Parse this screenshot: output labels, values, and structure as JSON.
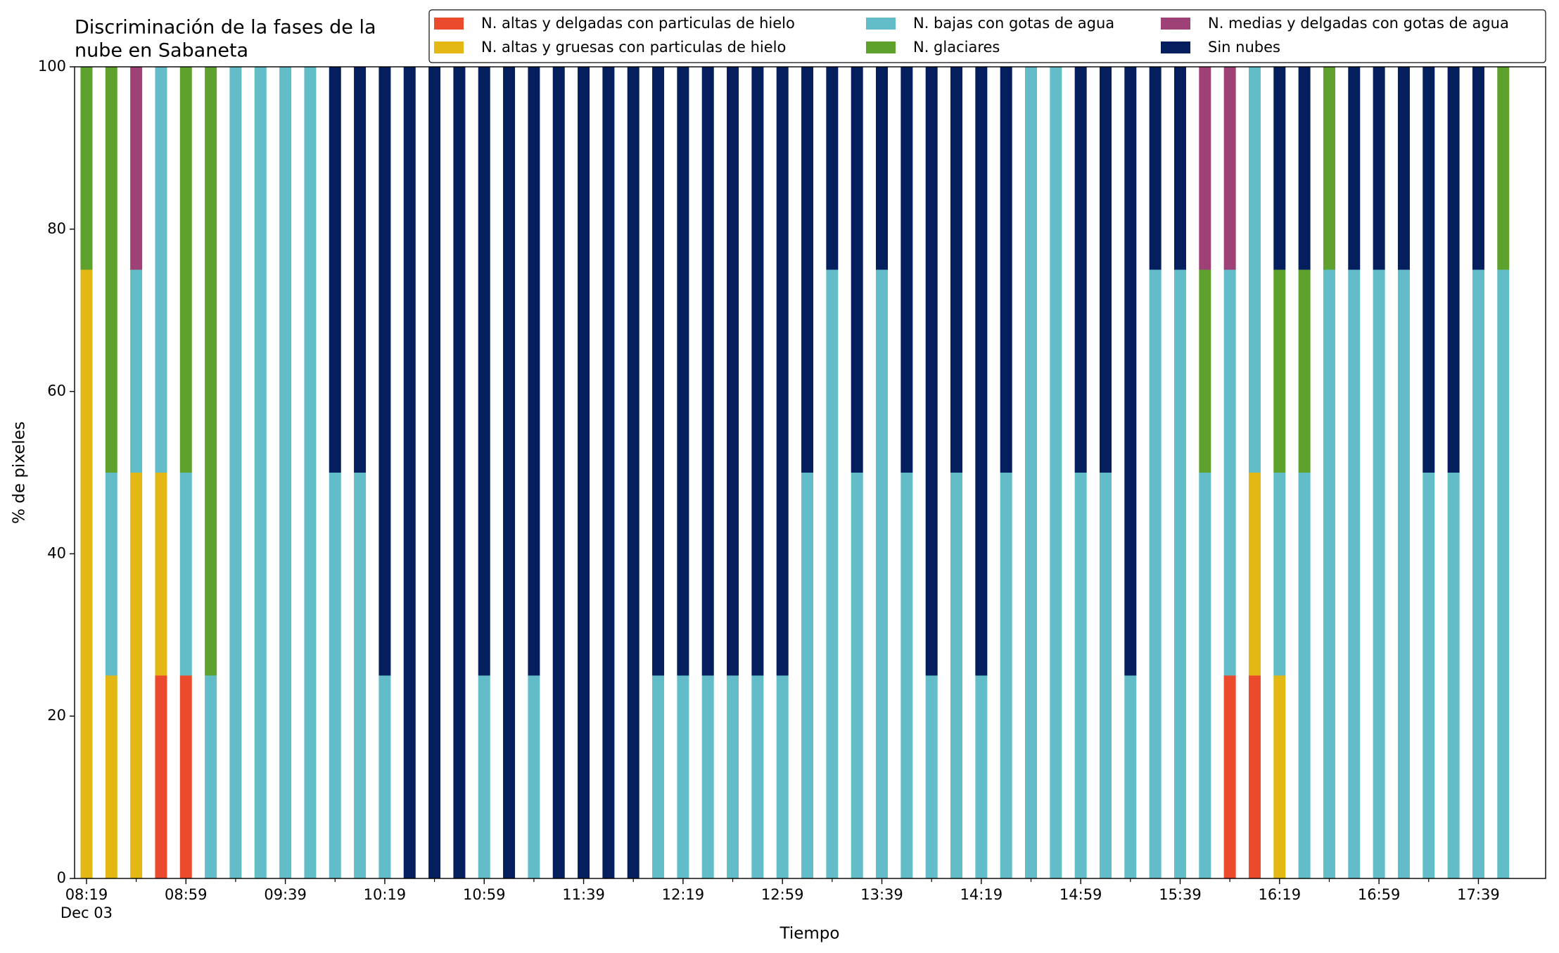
{
  "chart_data": {
    "type": "stacked_bar",
    "title": [
      "Discriminación de la fases de la",
      "nube en Sabaneta"
    ],
    "x_label": "Tiempo",
    "y_label": "% de pixeles",
    "x_sublabel": "Dec 03",
    "categories": [
      "08:19",
      null,
      null,
      null,
      "08:59",
      null,
      null,
      null,
      "09:39",
      null,
      null,
      null,
      "10:19",
      null,
      null,
      null,
      "10:59",
      null,
      null,
      null,
      "11:39",
      null,
      null,
      null,
      "12:19",
      null,
      null,
      null,
      "12:59",
      null,
      null,
      null,
      "13:39",
      null,
      null,
      null,
      "14:19",
      null,
      null,
      null,
      "14:59",
      null,
      null,
      null,
      "15:39",
      null,
      null,
      null,
      "16:19",
      null,
      null,
      null,
      "16:59",
      null,
      null,
      null,
      "17:39",
      null
    ],
    "series": [
      {
        "name": "N. altas y delgadas con particulas de hielo",
        "color": "#eb4a2c",
        "values": [
          0,
          0,
          0,
          25,
          25,
          0,
          0,
          0,
          0,
          0,
          0,
          0,
          0,
          0,
          0,
          0,
          0,
          0,
          0,
          0,
          0,
          0,
          0,
          0,
          0,
          0,
          0,
          0,
          0,
          0,
          0,
          0,
          0,
          0,
          0,
          0,
          0,
          0,
          0,
          0,
          0,
          0,
          0,
          0,
          0,
          0,
          25,
          25,
          0,
          0,
          0,
          0,
          0,
          0,
          0,
          0,
          0,
          0
        ]
      },
      {
        "name": "N. altas y gruesas con particulas de hielo",
        "color": "#e3b714",
        "values": [
          75,
          25,
          50,
          25,
          0,
          0,
          0,
          0,
          0,
          0,
          0,
          0,
          0,
          0,
          0,
          0,
          0,
          0,
          0,
          0,
          0,
          0,
          0,
          0,
          0,
          0,
          0,
          0,
          0,
          0,
          0,
          0,
          0,
          0,
          0,
          0,
          0,
          0,
          0,
          0,
          0,
          0,
          0,
          0,
          0,
          0,
          0,
          25,
          25,
          0,
          0,
          0,
          0,
          0,
          0,
          0,
          0,
          0
        ]
      },
      {
        "name": "N. bajas con gotas de agua",
        "color": "#63bdc8",
        "values": [
          0,
          25,
          25,
          50,
          25,
          25,
          100,
          100,
          100,
          100,
          50,
          50,
          25,
          0,
          0,
          0,
          25,
          0,
          25,
          0,
          0,
          0,
          0,
          25,
          25,
          25,
          25,
          25,
          25,
          50,
          75,
          50,
          75,
          50,
          25,
          50,
          25,
          50,
          100,
          100,
          50,
          50,
          25,
          75,
          75,
          50,
          50,
          50,
          25,
          50,
          75,
          75,
          75,
          75,
          50,
          50,
          75,
          75
        ]
      },
      {
        "name": "N. glaciares",
        "color": "#5ea22d",
        "values": [
          25,
          50,
          0,
          0,
          50,
          75,
          0,
          0,
          0,
          0,
          0,
          0,
          0,
          0,
          0,
          0,
          0,
          0,
          0,
          0,
          0,
          0,
          0,
          0,
          0,
          0,
          0,
          0,
          0,
          0,
          0,
          0,
          0,
          0,
          0,
          0,
          0,
          0,
          0,
          0,
          0,
          0,
          0,
          0,
          0,
          25,
          0,
          0,
          25,
          25,
          25,
          0,
          0,
          0,
          0,
          0,
          0,
          25
        ]
      },
      {
        "name": "N. medias y delgadas con gotas de agua",
        "color": "#9e4177",
        "values": [
          0,
          0,
          25,
          0,
          0,
          0,
          0,
          0,
          0,
          0,
          0,
          0,
          0,
          0,
          0,
          0,
          0,
          0,
          0,
          0,
          0,
          0,
          0,
          0,
          0,
          0,
          0,
          0,
          0,
          0,
          0,
          0,
          0,
          0,
          0,
          0,
          0,
          0,
          0,
          0,
          0,
          0,
          0,
          0,
          0,
          25,
          25,
          0,
          0,
          0,
          0,
          0,
          0,
          0,
          0,
          0,
          0,
          0
        ]
      },
      {
        "name": "Sin nubes",
        "color": "#041e5e",
        "values": [
          0,
          0,
          0,
          0,
          0,
          0,
          0,
          0,
          0,
          0,
          50,
          50,
          75,
          100,
          100,
          100,
          75,
          100,
          75,
          100,
          100,
          100,
          100,
          75,
          75,
          75,
          75,
          75,
          75,
          50,
          25,
          50,
          25,
          50,
          75,
          50,
          75,
          50,
          0,
          0,
          50,
          50,
          75,
          25,
          25,
          0,
          0,
          0,
          25,
          25,
          0,
          25,
          25,
          25,
          50,
          50,
          25,
          0
        ]
      }
    ],
    "ylim": [
      0,
      100
    ],
    "yticks": [
      0,
      20,
      40,
      60,
      80,
      100
    ],
    "grid": false
  }
}
